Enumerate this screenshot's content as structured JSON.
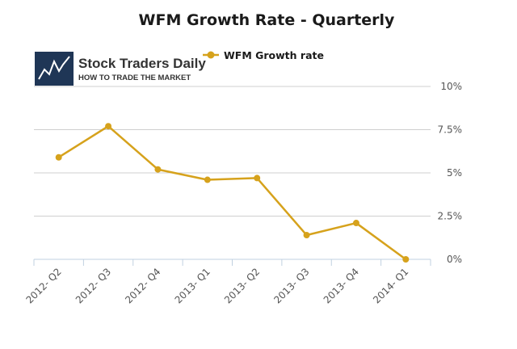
{
  "logo": {
    "name": "Stock Traders Daily",
    "tagline": "HOW TO TRADE THE MARKET"
  },
  "chart_data": {
    "type": "line",
    "title": "WFM Growth Rate - Quarterly",
    "categories": [
      "2012- Q2",
      "2012- Q3",
      "2012- Q4",
      "2013- Q1",
      "2013- Q2",
      "2013- Q3",
      "2013- Q4",
      "2014- Q1"
    ],
    "series": [
      {
        "name": "WFM Growth rate",
        "values": [
          5.9,
          7.7,
          5.2,
          4.6,
          4.7,
          1.4,
          2.1,
          0.0
        ],
        "color": "#d6a21c"
      }
    ],
    "ylim": [
      0,
      10
    ],
    "yticks": [
      0,
      2.5,
      5,
      7.5,
      10
    ],
    "ytick_labels": [
      "0%",
      "2.5%",
      "5%",
      "7.5%",
      "10%"
    ],
    "grid": true,
    "legend_position": "top",
    "xlabel": "",
    "ylabel": ""
  }
}
